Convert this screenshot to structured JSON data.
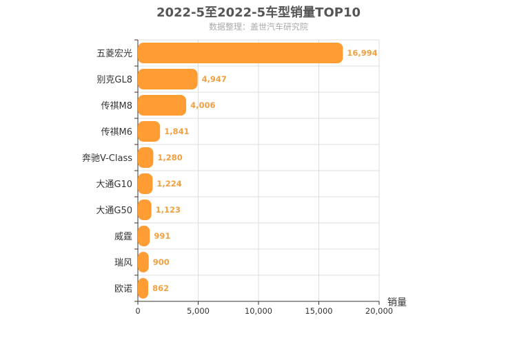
{
  "chart_data": {
    "type": "bar",
    "orientation": "horizontal",
    "title": "2022-5至2022-5车型销量TOP10",
    "subtitle": "数据整理：盖世汽车研究院",
    "xlabel": "销量",
    "ylabel": "",
    "xlim": [
      0,
      20000
    ],
    "xticks": [
      "0",
      "5,000",
      "10,000",
      "15,000",
      "20,000"
    ],
    "grid": true,
    "bar_color": "#ff9c33",
    "label_color": "#f0a040",
    "categories": [
      "五菱宏光",
      "别克GL8",
      "传祺M8",
      "传祺M6",
      "奔驰V-Class",
      "大通G10",
      "大通G50",
      "威霆",
      "瑞风",
      "欧诺"
    ],
    "values": [
      16994,
      4947,
      4006,
      1841,
      1280,
      1224,
      1123,
      991,
      900,
      862
    ],
    "value_labels": [
      "16,994",
      "4,947",
      "4,006",
      "1,841",
      "1,280",
      "1,224",
      "1,123",
      "991",
      "900",
      "862"
    ]
  }
}
